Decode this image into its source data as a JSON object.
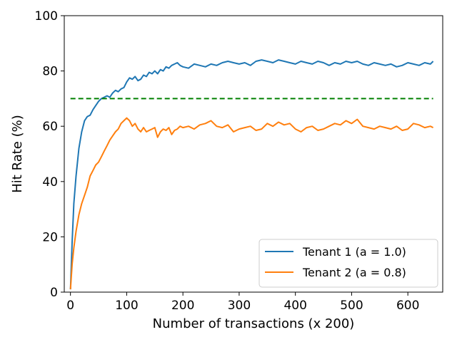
{
  "chart_data": {
    "type": "line",
    "title": "",
    "xlabel": "Number of transactions (x 200)",
    "ylabel": "Hit Rate (%)",
    "xlim": [
      -11,
      662
    ],
    "ylim": [
      0,
      100
    ],
    "xticks": [
      0,
      100,
      200,
      300,
      400,
      500,
      600
    ],
    "yticks": [
      0,
      20,
      40,
      60,
      80,
      100
    ],
    "grid": false,
    "legend_position": "lower right",
    "series": [
      {
        "name": "Tenant 1 (a = 1.0)",
        "color": "#1f77b4",
        "x": [
          0,
          3,
          6,
          10,
          15,
          20,
          25,
          30,
          35,
          40,
          45,
          50,
          55,
          60,
          65,
          70,
          75,
          80,
          85,
          90,
          95,
          100,
          105,
          110,
          115,
          120,
          125,
          130,
          135,
          140,
          145,
          150,
          155,
          160,
          165,
          170,
          175,
          180,
          185,
          190,
          195,
          200,
          210,
          220,
          230,
          240,
          250,
          260,
          270,
          280,
          290,
          300,
          310,
          320,
          330,
          340,
          350,
          360,
          370,
          380,
          390,
          400,
          410,
          420,
          430,
          440,
          450,
          460,
          470,
          480,
          490,
          500,
          510,
          520,
          530,
          540,
          550,
          560,
          570,
          580,
          590,
          600,
          610,
          620,
          630,
          640,
          645
        ],
        "y": [
          1,
          18,
          32,
          42,
          52,
          58,
          62,
          63.5,
          64,
          66,
          67.5,
          69,
          70,
          70.5,
          71,
          70.5,
          72,
          73,
          72.5,
          73.5,
          74,
          76,
          77.5,
          77,
          78,
          76.5,
          77,
          78.5,
          78,
          79.5,
          79,
          80,
          79,
          80.5,
          80,
          81.5,
          81,
          82,
          82.5,
          83,
          82,
          81.5,
          81,
          82.5,
          82,
          81.5,
          82.5,
          82,
          83,
          83.5,
          83,
          82.5,
          83,
          82,
          83.5,
          84,
          83.5,
          83,
          84,
          83.5,
          83,
          82.5,
          83.5,
          83,
          82.5,
          83.5,
          83,
          82,
          83,
          82.5,
          83.5,
          83,
          83.5,
          82.5,
          82,
          83,
          82.5,
          82,
          82.5,
          81.5,
          82,
          83,
          82.5,
          82,
          83,
          82.5,
          83.5
        ]
      },
      {
        "name": "Tenant 2 (a = 0.8)",
        "color": "#ff7f0e",
        "x": [
          0,
          3,
          6,
          10,
          15,
          20,
          25,
          30,
          35,
          40,
          45,
          50,
          55,
          60,
          65,
          70,
          75,
          80,
          85,
          90,
          95,
          100,
          105,
          110,
          115,
          120,
          125,
          130,
          135,
          140,
          145,
          150,
          155,
          160,
          165,
          170,
          175,
          180,
          185,
          190,
          195,
          200,
          210,
          220,
          230,
          240,
          250,
          260,
          270,
          280,
          290,
          300,
          310,
          320,
          330,
          340,
          350,
          360,
          370,
          380,
          390,
          400,
          410,
          420,
          430,
          440,
          450,
          460,
          470,
          480,
          490,
          500,
          510,
          520,
          530,
          540,
          550,
          560,
          570,
          580,
          590,
          600,
          610,
          620,
          630,
          640,
          645
        ],
        "y": [
          1,
          10,
          16,
          22,
          28,
          32,
          35,
          38,
          42,
          44,
          46,
          47,
          49,
          51,
          53,
          55,
          56.5,
          58,
          59,
          61,
          62,
          63,
          62,
          60,
          61,
          59,
          58,
          59.5,
          58,
          58.5,
          59,
          59.5,
          56,
          58,
          59,
          58.5,
          59.5,
          57,
          58.5,
          59,
          60,
          59.5,
          60,
          59,
          60.5,
          61,
          62,
          60,
          59.5,
          60.5,
          58,
          59,
          59.5,
          60,
          58.5,
          59,
          61,
          60,
          61.5,
          60.5,
          61,
          59,
          58,
          59.5,
          60,
          58.5,
          59,
          60,
          61,
          60.5,
          62,
          61,
          62.5,
          60,
          59.5,
          59,
          60,
          59.5,
          59,
          60,
          58.5,
          59,
          61,
          60.5,
          59.5,
          60,
          59.5
        ]
      },
      {
        "name": "",
        "color": "#008000",
        "dashed": true,
        "x": [
          0,
          645
        ],
        "y": [
          70,
          70
        ]
      }
    ]
  }
}
